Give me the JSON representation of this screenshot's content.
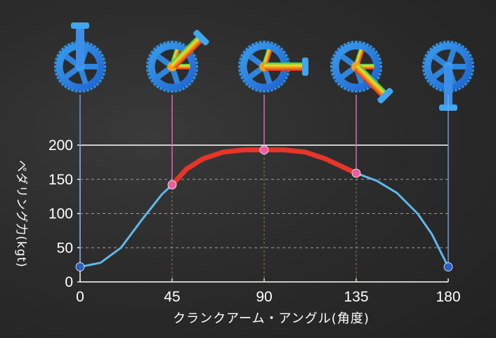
{
  "chart_data": {
    "type": "line",
    "xlabel": "クランクアーム・アングル(角度)",
    "ylabel": "ペダリング力(kgt)",
    "xlim": [
      0,
      180
    ],
    "ylim": [
      0,
      200
    ],
    "x_ticks": [
      "0",
      "45",
      "90",
      "135",
      "180"
    ],
    "y_ticks": [
      "0",
      "50",
      "100",
      "150",
      "200"
    ],
    "grid": "horizontal dashed",
    "series": [
      {
        "color": "#5fb8ea",
        "points": [
          [
            0,
            22
          ],
          [
            10,
            28
          ],
          [
            20,
            50
          ],
          [
            30,
            90
          ],
          [
            40,
            128
          ],
          [
            45,
            142
          ],
          [
            52,
            165
          ],
          [
            60,
            180
          ],
          [
            70,
            190
          ],
          [
            80,
            193
          ],
          [
            90,
            193
          ],
          [
            100,
            193
          ],
          [
            110,
            190
          ],
          [
            120,
            180
          ],
          [
            130,
            166
          ],
          [
            135,
            159
          ],
          [
            145,
            148
          ],
          [
            155,
            130
          ],
          [
            165,
            100
          ],
          [
            172,
            70
          ],
          [
            180,
            22
          ]
        ]
      }
    ],
    "highlight": {
      "range": [
        45,
        135
      ],
      "color": "#e8352a"
    },
    "reference_line": {
      "y": 200,
      "color": "#ffffff"
    },
    "markers": [
      {
        "x": 0,
        "y": 22,
        "color": "#2b5fc8"
      },
      {
        "x": 45,
        "y": 142,
        "color": "#f060a8"
      },
      {
        "x": 90,
        "y": 193,
        "color": "#f060a8"
      },
      {
        "x": 135,
        "y": 159,
        "color": "#f060a8"
      },
      {
        "x": 180,
        "y": 22,
        "color": "#2b5fc8"
      }
    ],
    "crank_icons": [
      {
        "x": 0,
        "name": "crank-0-icon",
        "stress": "low"
      },
      {
        "x": 45,
        "name": "crank-45-icon",
        "stress": "high"
      },
      {
        "x": 90,
        "name": "crank-90-icon",
        "stress": "high"
      },
      {
        "x": 135,
        "name": "crank-135-icon",
        "stress": "high"
      },
      {
        "x": 180,
        "name": "crank-180-icon",
        "stress": "low"
      }
    ]
  },
  "colors": {
    "blue_line": "#5fb8ea",
    "red_line": "#e8352a",
    "pink_marker": "#f060a8",
    "blue_marker": "#2b5fc8",
    "axis": "#ffffff"
  }
}
